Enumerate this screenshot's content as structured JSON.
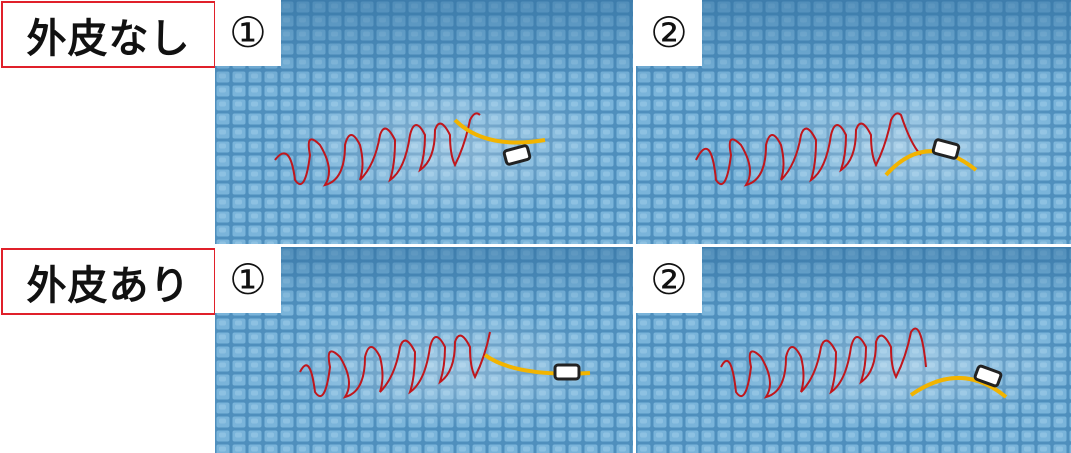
{
  "rows": [
    {
      "label": "外皮なし",
      "panels": [
        {
          "number": "①",
          "description": "robot in pool with red trajectory and yellow body curve"
        },
        {
          "number": "②",
          "description": "robot in pool with red trajectory and yellow body curve"
        }
      ]
    },
    {
      "label": "外皮あり",
      "panels": [
        {
          "number": "①",
          "description": "robot in pool with red trajectory and yellow body curve"
        },
        {
          "number": "②",
          "description": "robot in pool with red trajectory and yellow body curve"
        }
      ]
    }
  ],
  "colors": {
    "label_border": "#e0202a",
    "trajectory": "#c0161c",
    "body_curve": "#f2b400",
    "pool_base": "#5e9fc8"
  }
}
